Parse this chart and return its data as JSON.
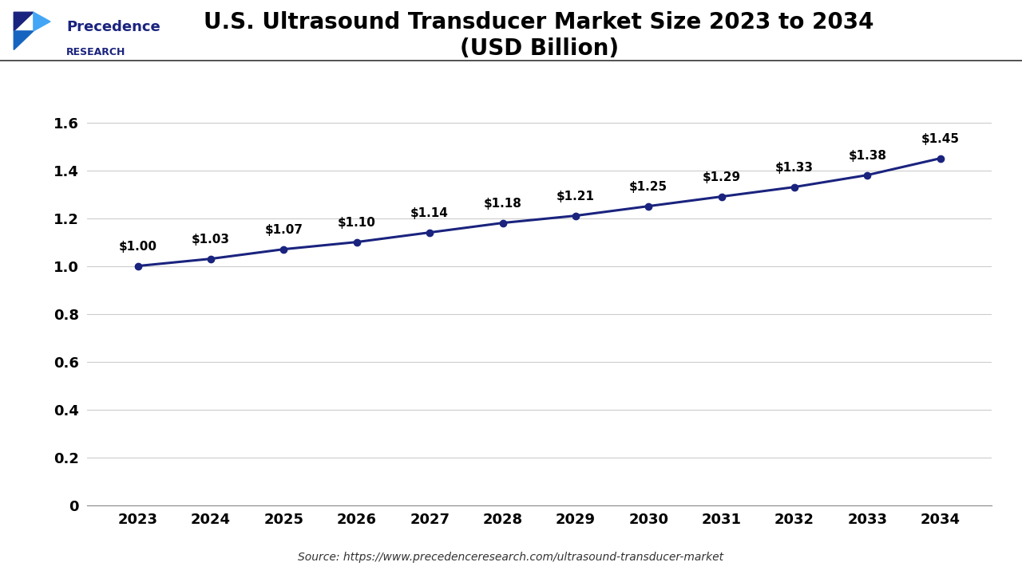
{
  "title_line1": "U.S. Ultrasound Transducer Market Size 2023 to 2034",
  "title_line2": "(USD Billion)",
  "years": [
    2023,
    2024,
    2025,
    2026,
    2027,
    2028,
    2029,
    2030,
    2031,
    2032,
    2033,
    2034
  ],
  "values": [
    1.0,
    1.03,
    1.07,
    1.1,
    1.14,
    1.18,
    1.21,
    1.25,
    1.29,
    1.33,
    1.38,
    1.45
  ],
  "labels": [
    "$1.00",
    "$1.03",
    "$1.07",
    "$1.10",
    "$1.14",
    "$1.18",
    "$1.21",
    "$1.25",
    "$1.29",
    "$1.33",
    "$1.38",
    "$1.45"
  ],
  "line_color": "#1a237e",
  "marker_color": "#1a237e",
  "background_color": "#ffffff",
  "grid_color": "#cccccc",
  "ylim": [
    0,
    1.8
  ],
  "yticks": [
    0,
    0.2,
    0.4,
    0.6,
    0.8,
    1.0,
    1.2,
    1.4,
    1.6
  ],
  "source_text": "Source: https://www.precedenceresearch.com/ultrasound-transducer-market",
  "title_fontsize": 20,
  "tick_fontsize": 13,
  "label_fontsize": 11,
  "source_fontsize": 10,
  "logo_text_line1": "Precedence",
  "logo_text_line2": "RESEARCH"
}
